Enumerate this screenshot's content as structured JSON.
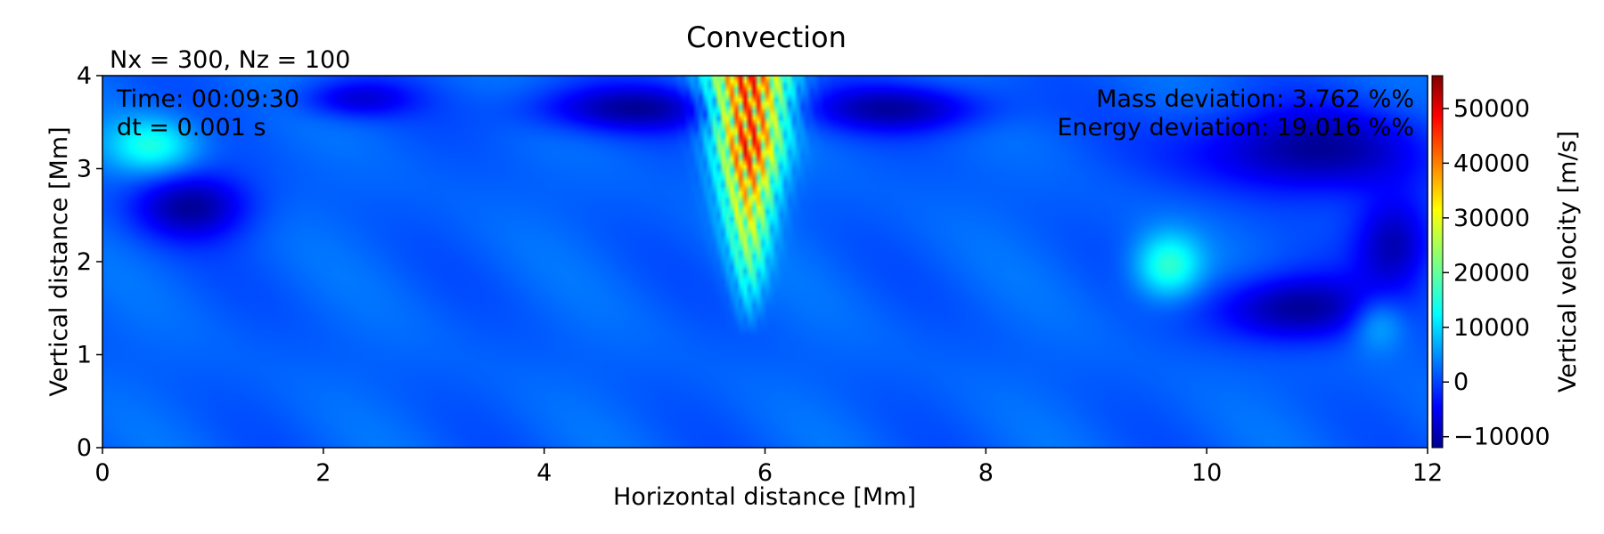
{
  "chart_data": {
    "type": "heatmap",
    "title": "Convection",
    "subtitle": "Nx = 300, Nz = 100",
    "xlabel": "Horizontal distance [Mm]",
    "ylabel": "Vertical distance [Mm]",
    "xlim": [
      0,
      12
    ],
    "ylim": [
      0,
      4
    ],
    "xticks": [
      "0",
      "2",
      "4",
      "6",
      "8",
      "10",
      "12"
    ],
    "yticks": [
      "0",
      "1",
      "2",
      "3",
      "4"
    ],
    "annotations": {
      "time": "Time: 00:09:30",
      "dt": "dt = 0.001 s",
      "mass": "Mass deviation: 3.762 %%",
      "energy": "Energy deviation: 19.016 %%"
    },
    "colorbar": {
      "label": "Vertical velocity [m/s]",
      "ticks": [
        "−10000",
        "0",
        "10000",
        "20000",
        "30000",
        "40000",
        "50000"
      ],
      "range": [
        -12000,
        56000
      ],
      "colormap": "jet"
    },
    "background_value": 3000,
    "features": [
      {
        "x": 5.85,
        "y": 2.9,
        "amp": 48000,
        "sx": 0.25,
        "sy": 0.75,
        "kind": "oscillating-plume"
      },
      {
        "x": 9.65,
        "y": 1.95,
        "amp": 14000,
        "sx": 0.3,
        "sy": 0.35
      },
      {
        "x": 0.45,
        "y": 3.25,
        "amp": 12000,
        "sx": 0.4,
        "sy": 0.3
      },
      {
        "x": 11.55,
        "y": 1.35,
        "amp": 8000,
        "sx": 0.25,
        "sy": 0.3
      },
      {
        "x": 0.8,
        "y": 2.6,
        "amp": -13000,
        "sx": 0.5,
        "sy": 0.35
      },
      {
        "x": 4.8,
        "y": 3.65,
        "amp": -12000,
        "sx": 0.9,
        "sy": 0.25
      },
      {
        "x": 7.2,
        "y": 3.65,
        "amp": -12000,
        "sx": 0.8,
        "sy": 0.25
      },
      {
        "x": 10.8,
        "y": 1.5,
        "amp": -14000,
        "sx": 0.7,
        "sy": 0.35
      },
      {
        "x": 10.9,
        "y": 3.2,
        "amp": -13000,
        "sx": 1.1,
        "sy": 0.45
      },
      {
        "x": 2.3,
        "y": 3.75,
        "amp": -9000,
        "sx": 0.5,
        "sy": 0.2
      },
      {
        "x": 11.7,
        "y": 2.2,
        "amp": -12000,
        "sx": 0.35,
        "sy": 0.5
      }
    ]
  }
}
